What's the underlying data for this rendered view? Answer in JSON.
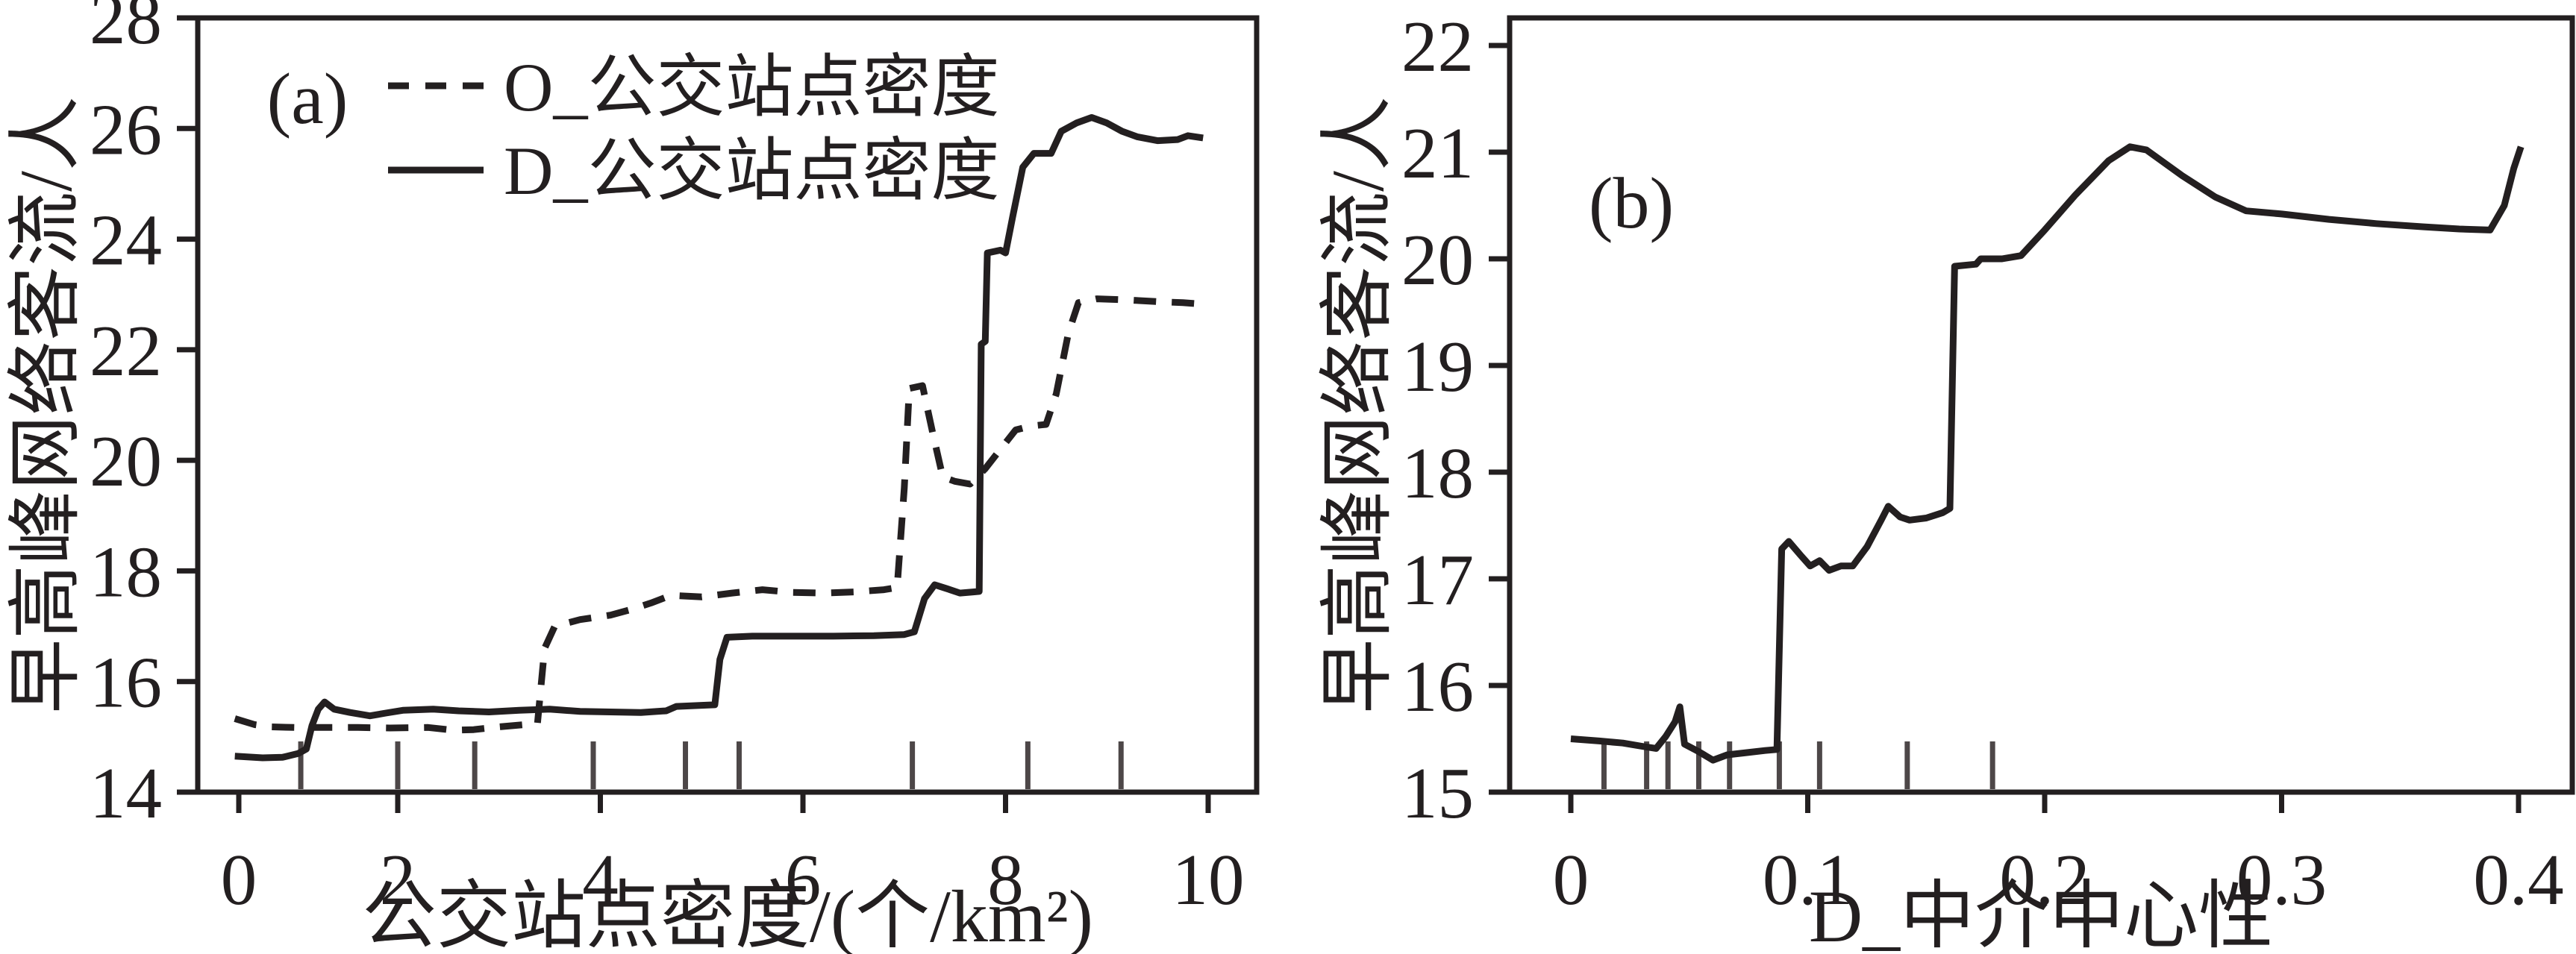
{
  "figure": {
    "background": "#ffffff",
    "line_color": "#231f20",
    "rug_color": "#4d4748"
  },
  "chart_data": [
    {
      "type": "line",
      "title": "(a)",
      "xlabel": "公交站点密度/(个/km²)",
      "ylabel": "早高峰网络客流/人",
      "xlim": [
        -0.5,
        10.5
      ],
      "ylim": [
        14,
        28
      ],
      "grid": false,
      "legend_position": "top-left-inside",
      "xticks": {
        "values": [
          0,
          2,
          4,
          6,
          8,
          10
        ],
        "labels": [
          "0",
          "2",
          "4",
          "6",
          "8",
          "10"
        ]
      },
      "yticks": {
        "values": [
          14,
          16,
          18,
          20,
          22,
          24,
          26,
          28
        ],
        "labels": [
          "14",
          "16",
          "18",
          "20",
          "22",
          "24",
          "26",
          "28"
        ]
      },
      "rug_x": [
        0.78,
        2.0,
        2.76,
        3.93,
        4.84,
        5.37,
        7.08,
        8.22,
        9.14
      ],
      "series": [
        {
          "name": "O_公交站点密度",
          "style": "dashed",
          "points": [
            [
              -0.05,
              15.33
            ],
            [
              0.2,
              15.22
            ],
            [
              0.4,
              15.18
            ],
            [
              0.7,
              15.17
            ],
            [
              1.1,
              15.17
            ],
            [
              1.5,
              15.17
            ],
            [
              1.9,
              15.16
            ],
            [
              2.3,
              15.17
            ],
            [
              2.55,
              15.12
            ],
            [
              2.75,
              15.13
            ],
            [
              3.0,
              15.18
            ],
            [
              3.25,
              15.22
            ],
            [
              3.38,
              15.25
            ],
            [
              3.45,
              16.6
            ],
            [
              3.55,
              17.0
            ],
            [
              3.8,
              17.12
            ],
            [
              4.1,
              17.2
            ],
            [
              4.3,
              17.3
            ],
            [
              4.5,
              17.42
            ],
            [
              4.7,
              17.56
            ],
            [
              5.0,
              17.53
            ],
            [
              5.3,
              17.6
            ],
            [
              5.6,
              17.66
            ],
            [
              5.9,
              17.61
            ],
            [
              6.2,
              17.6
            ],
            [
              6.5,
              17.62
            ],
            [
              6.8,
              17.66
            ],
            [
              6.93,
              17.7
            ],
            [
              7.0,
              19.5
            ],
            [
              7.05,
              21.3
            ],
            [
              7.18,
              21.35
            ],
            [
              7.28,
              20.5
            ],
            [
              7.38,
              19.7
            ],
            [
              7.5,
              19.62
            ],
            [
              7.65,
              19.57
            ],
            [
              7.8,
              19.85
            ],
            [
              7.95,
              20.2
            ],
            [
              8.1,
              20.55
            ],
            [
              8.25,
              20.62
            ],
            [
              8.4,
              20.65
            ],
            [
              8.5,
              21.2
            ],
            [
              8.62,
              22.3
            ],
            [
              8.72,
              22.85
            ],
            [
              8.9,
              22.92
            ],
            [
              9.2,
              22.9
            ],
            [
              9.5,
              22.87
            ],
            [
              9.75,
              22.85
            ],
            [
              9.9,
              22.83
            ]
          ]
        },
        {
          "name": "D_公交站点密度",
          "style": "solid",
          "points": [
            [
              -0.05,
              14.65
            ],
            [
              0.3,
              14.62
            ],
            [
              0.55,
              14.63
            ],
            [
              0.75,
              14.7
            ],
            [
              0.85,
              14.78
            ],
            [
              0.92,
              15.2
            ],
            [
              1.0,
              15.5
            ],
            [
              1.08,
              15.63
            ],
            [
              1.2,
              15.5
            ],
            [
              1.4,
              15.44
            ],
            [
              1.65,
              15.38
            ],
            [
              1.85,
              15.43
            ],
            [
              2.05,
              15.48
            ],
            [
              2.35,
              15.5
            ],
            [
              2.6,
              15.47
            ],
            [
              2.9,
              15.45
            ],
            [
              3.2,
              15.48
            ],
            [
              3.5,
              15.5
            ],
            [
              3.8,
              15.46
            ],
            [
              4.1,
              15.45
            ],
            [
              4.4,
              15.44
            ],
            [
              4.65,
              15.47
            ],
            [
              4.75,
              15.55
            ],
            [
              5.0,
              15.57
            ],
            [
              5.13,
              15.58
            ],
            [
              5.18,
              16.4
            ],
            [
              5.25,
              16.8
            ],
            [
              5.5,
              16.82
            ],
            [
              5.9,
              16.82
            ],
            [
              6.3,
              16.82
            ],
            [
              6.7,
              16.83
            ],
            [
              7.0,
              16.85
            ],
            [
              7.1,
              16.9
            ],
            [
              7.2,
              17.5
            ],
            [
              7.3,
              17.75
            ],
            [
              7.42,
              17.68
            ],
            [
              7.55,
              17.6
            ],
            [
              7.68,
              17.62
            ],
            [
              7.74,
              17.63
            ],
            [
              7.76,
              22.1
            ],
            [
              7.8,
              22.15
            ],
            [
              7.82,
              23.75
            ],
            [
              7.95,
              23.8
            ],
            [
              8.0,
              23.75
            ],
            [
              8.07,
              24.4
            ],
            [
              8.17,
              25.3
            ],
            [
              8.28,
              25.55
            ],
            [
              8.45,
              25.55
            ],
            [
              8.55,
              25.95
            ],
            [
              8.7,
              26.1
            ],
            [
              8.85,
              26.2
            ],
            [
              9.0,
              26.1
            ],
            [
              9.15,
              25.95
            ],
            [
              9.3,
              25.85
            ],
            [
              9.5,
              25.78
            ],
            [
              9.7,
              25.8
            ],
            [
              9.8,
              25.87
            ],
            [
              9.95,
              25.83
            ]
          ]
        }
      ],
      "legend": [
        {
          "label": "O_公交站点密度",
          "style": "dashed"
        },
        {
          "label": "D_公交站点密度",
          "style": "solid"
        }
      ]
    },
    {
      "type": "line",
      "title": "(b)",
      "xlabel": "D_中介中心性",
      "ylabel": "早高峰网络客流/人",
      "xlim": [
        -0.026,
        0.422
      ],
      "ylim": [
        15,
        22
      ],
      "grid": false,
      "xticks": {
        "values": [
          0,
          0.1,
          0.2,
          0.3,
          0.4
        ],
        "labels": [
          "0",
          "0.1",
          "0.2",
          "0.3",
          "0.4"
        ]
      },
      "yticks": {
        "values": [
          15,
          16,
          17,
          18,
          19,
          20,
          21,
          22
        ],
        "labels": [
          "15",
          "16",
          "17",
          "18",
          "19",
          "20",
          "21",
          "22"
        ]
      },
      "rug_x": [
        0.014,
        0.032,
        0.041,
        0.054,
        0.067,
        0.088,
        0.105,
        0.142,
        0.178
      ],
      "series": [
        {
          "name": "D_中介中心性",
          "style": "solid",
          "points": [
            [
              0.0,
              15.5
            ],
            [
              0.012,
              15.48
            ],
            [
              0.022,
              15.46
            ],
            [
              0.03,
              15.43
            ],
            [
              0.036,
              15.41
            ],
            [
              0.04,
              15.52
            ],
            [
              0.044,
              15.66
            ],
            [
              0.046,
              15.8
            ],
            [
              0.048,
              15.45
            ],
            [
              0.054,
              15.38
            ],
            [
              0.06,
              15.3
            ],
            [
              0.066,
              15.35
            ],
            [
              0.074,
              15.37
            ],
            [
              0.082,
              15.39
            ],
            [
              0.087,
              15.4
            ],
            [
              0.089,
              17.28
            ],
            [
              0.092,
              17.35
            ],
            [
              0.097,
              17.22
            ],
            [
              0.101,
              17.12
            ],
            [
              0.105,
              17.17
            ],
            [
              0.109,
              17.08
            ],
            [
              0.114,
              17.12
            ],
            [
              0.119,
              17.12
            ],
            [
              0.125,
              17.3
            ],
            [
              0.131,
              17.55
            ],
            [
              0.134,
              17.68
            ],
            [
              0.139,
              17.58
            ],
            [
              0.143,
              17.55
            ],
            [
              0.15,
              17.57
            ],
            [
              0.157,
              17.62
            ],
            [
              0.16,
              17.66
            ],
            [
              0.162,
              19.93
            ],
            [
              0.171,
              19.95
            ],
            [
              0.173,
              20.0
            ],
            [
              0.182,
              20.0
            ],
            [
              0.19,
              20.03
            ],
            [
              0.2,
              20.27
            ],
            [
              0.213,
              20.6
            ],
            [
              0.227,
              20.92
            ],
            [
              0.236,
              21.05
            ],
            [
              0.243,
              21.02
            ],
            [
              0.258,
              20.78
            ],
            [
              0.272,
              20.58
            ],
            [
              0.285,
              20.45
            ],
            [
              0.3,
              20.42
            ],
            [
              0.32,
              20.37
            ],
            [
              0.34,
              20.33
            ],
            [
              0.36,
              20.3
            ],
            [
              0.375,
              20.28
            ],
            [
              0.388,
              20.27
            ],
            [
              0.394,
              20.5
            ],
            [
              0.398,
              20.85
            ],
            [
              0.401,
              21.05
            ]
          ]
        }
      ]
    }
  ]
}
